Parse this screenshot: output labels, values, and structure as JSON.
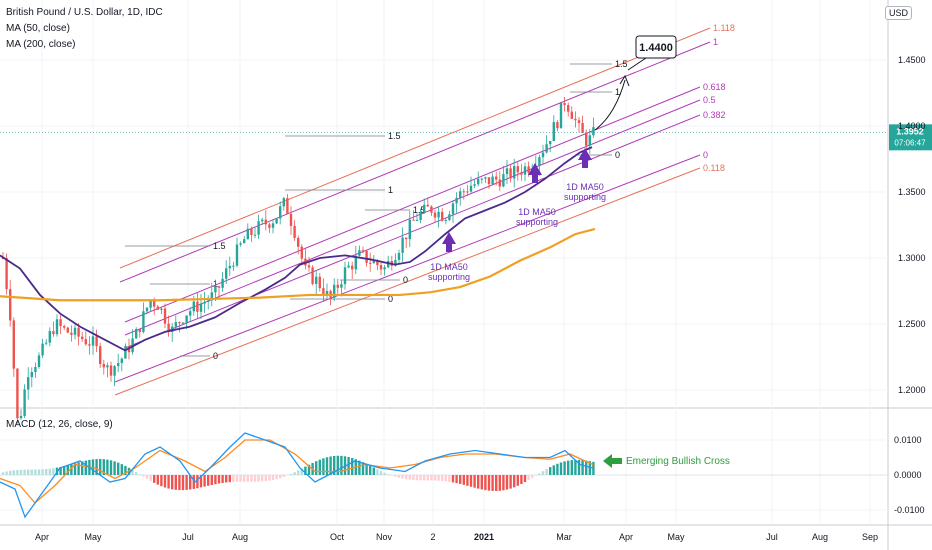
{
  "header": {
    "title": "British Pound / U.S. Dollar, 1D, IDC",
    "ma50": "MA (50, close)",
    "ma200": "MA (200, close)",
    "macd": "MACD (12, 26, close, 9)",
    "currency": "USD"
  },
  "price_panel": {
    "current_price": "1.3952",
    "countdown": "07:06:47",
    "target_label": "1.4400",
    "annotations": [
      {
        "text": "1D MA50\nsupporting",
        "color": "#6a2fb5"
      },
      {
        "text": "1D MA50\nsupporting",
        "color": "#6a2fb5"
      },
      {
        "text": "1D MA50\nsupporting",
        "color": "#6a2fb5"
      }
    ],
    "channel_labels_outer": [
      "1.118",
      "0.118"
    ],
    "channel_labels_inner": [
      "1",
      "0.618",
      "0.5",
      "0.382",
      "0"
    ],
    "swing_labels": [
      "1.5",
      "1",
      "0"
    ]
  },
  "macd_panel": {
    "annotation": "Emerging Bullish Cross",
    "annotation_color": "#2e9e3e"
  },
  "colors": {
    "up": "#26a69a",
    "down": "#ef5350",
    "ma50": "#4a2a8a",
    "ma200": "#f0a020",
    "channel_purple": "#b23bb8",
    "channel_red": "#e8705a",
    "macd_line": "#2196f3",
    "signal_line": "#ff8a1f"
  },
  "chart_data": [
    {
      "type": "candlestick",
      "title": "British Pound / U.S. Dollar, 1D, IDC",
      "x_ticks": [
        "Apr",
        "May",
        "Jul",
        "Aug",
        "Oct",
        "Nov",
        "2",
        "2021",
        "Mar",
        "Apr",
        "May",
        "Jul",
        "Aug",
        "Sep"
      ],
      "y_ticks": [
        1.2,
        1.25,
        1.3,
        1.35,
        1.4,
        1.45
      ],
      "ylim": [
        1.18,
        1.49
      ],
      "series": [
        {
          "name": "MA (50, close)",
          "x": [
            "Apr",
            "May",
            "Jul",
            "Aug",
            "Oct",
            "Nov",
            "2",
            "2021",
            "Mar"
          ],
          "values": [
            1.3,
            1.24,
            1.25,
            1.272,
            1.298,
            1.295,
            1.33,
            1.352,
            1.382
          ]
        },
        {
          "name": "MA (200, close)",
          "x": [
            "Apr",
            "May",
            "Jul",
            "Aug",
            "Oct",
            "Nov",
            "2",
            "2021",
            "Mar"
          ],
          "values": [
            1.27,
            1.268,
            1.268,
            1.27,
            1.275,
            1.273,
            1.282,
            1.3,
            1.32
          ]
        }
      ],
      "candle_path_key_points": [
        {
          "x": "Apr",
          "close": 1.3
        },
        {
          "x": "Apr",
          "close": 1.16
        },
        {
          "x": "May",
          "close": 1.225
        },
        {
          "x": "Jul",
          "close": 1.28
        },
        {
          "x": "Aug",
          "close": 1.345
        },
        {
          "x": "Oct",
          "close": 1.265
        },
        {
          "x": "Nov",
          "close": 1.292
        },
        {
          "x": "2",
          "close": 1.34
        },
        {
          "x": "2021",
          "close": 1.37
        },
        {
          "x": "Mar",
          "close": 1.42
        },
        {
          "x": "Mar",
          "close": 1.3952
        }
      ]
    },
    {
      "type": "line",
      "title": "MACD (12, 26, close, 9)",
      "y_ticks": [
        -0.01,
        0.0,
        0.01
      ],
      "series": [
        {
          "name": "MACD",
          "x": [
            "Apr",
            "May",
            "Jul",
            "Aug",
            "Oct",
            "Nov",
            "2",
            "2021",
            "Mar"
          ],
          "values": [
            -0.004,
            0.004,
            0.002,
            0.011,
            -0.001,
            0.003,
            0.006,
            0.005,
            0.002
          ]
        },
        {
          "name": "Signal",
          "x": [
            "Apr",
            "May",
            "Jul",
            "Aug",
            "Oct",
            "Nov",
            "2",
            "2021",
            "Mar"
          ],
          "values": [
            -0.003,
            0.002,
            0.0025,
            0.01,
            0.0,
            0.002,
            0.0055,
            0.005,
            0.003
          ]
        }
      ]
    }
  ]
}
